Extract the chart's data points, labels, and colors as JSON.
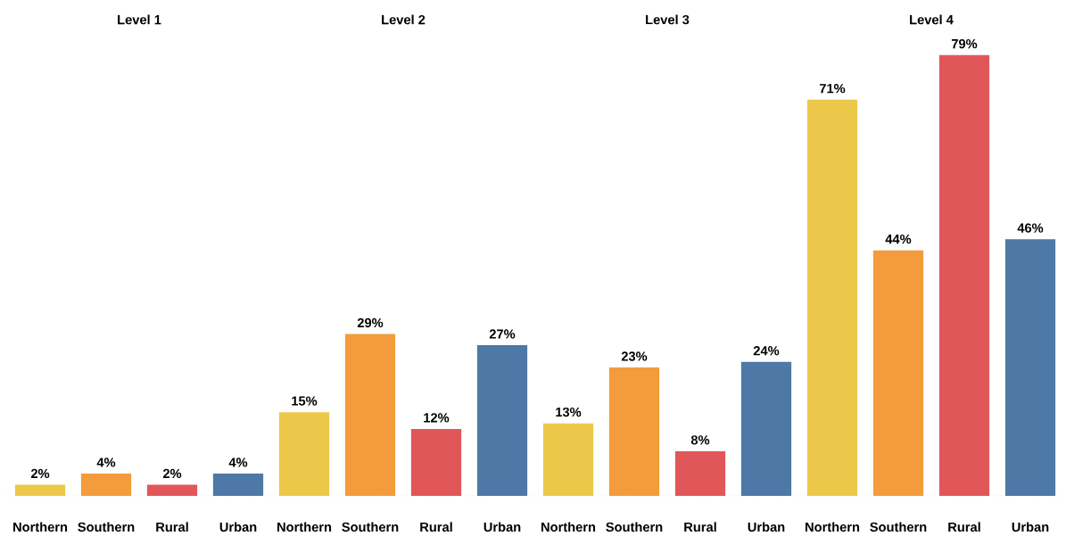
{
  "chart_data": {
    "type": "bar",
    "categories": [
      "Level 1",
      "Level 2",
      "Level 3",
      "Level 4"
    ],
    "series": [
      {
        "name": "Northern",
        "color": "#ebc84a",
        "values": [
          2,
          15,
          13,
          71
        ],
        "value_labels": [
          "2%",
          "15%",
          "13%",
          "71%"
        ]
      },
      {
        "name": "Southern",
        "color": "#f49c3c",
        "values": [
          4,
          29,
          23,
          44
        ],
        "value_labels": [
          "4%",
          "29%",
          "23%",
          "44%"
        ]
      },
      {
        "name": "Rural",
        "color": "#e15759",
        "values": [
          2,
          12,
          8,
          79
        ],
        "value_labels": [
          "2%",
          "12%",
          "8%",
          "79%"
        ]
      },
      {
        "name": "Urban",
        "color": "#4e79a7",
        "values": [
          4,
          27,
          24,
          46
        ],
        "value_labels": [
          "4%",
          "27%",
          "24%",
          "46%"
        ]
      }
    ]
  }
}
